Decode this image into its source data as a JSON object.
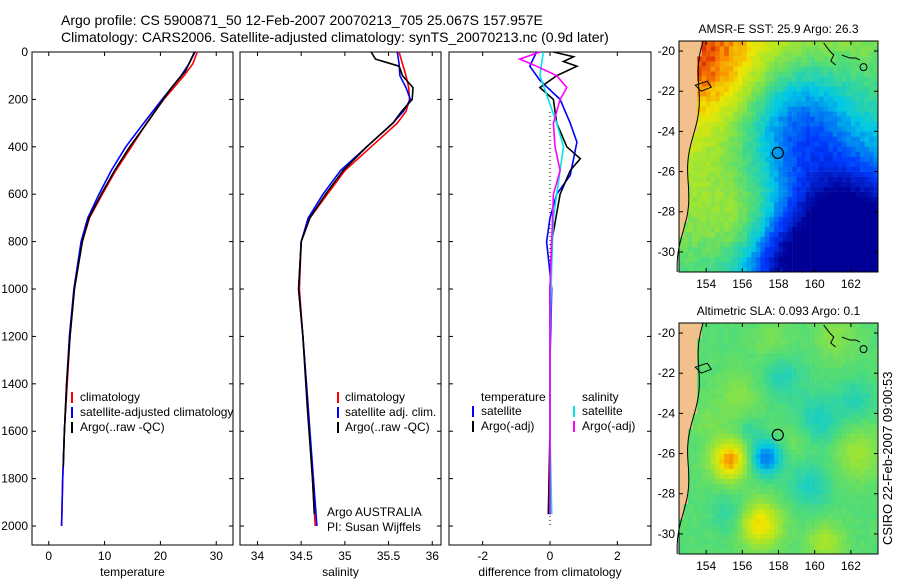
{
  "header": {
    "line1": "Argo profile: CS 5900871_50 12-Feb-2007 20070213_705 25.067S 157.957E",
    "line2": "Climatology: CARS2006. Satellite-adjusted climatology: synTS_20070213.nc (0.9d later)"
  },
  "side_label": "CSIRO 22-Feb-2007 09:00:53",
  "colors": {
    "climatology": "#ff0000",
    "satellite": "#0000ff",
    "argo": "#000000",
    "sat_diff": "#00e5e5",
    "argo_diff": "#ff00ff"
  },
  "chart_data": [
    {
      "type": "line",
      "panel": "temperature",
      "xlabel": "temperature",
      "xlim": [
        -3,
        33
      ],
      "ylim": [
        0,
        2080
      ],
      "y_reversed": true,
      "xticks": [
        0,
        10,
        20,
        30
      ],
      "yticks": [
        0,
        200,
        400,
        600,
        800,
        1000,
        1200,
        1400,
        1600,
        1800,
        2000
      ],
      "legend": [
        "climatology",
        "satellite-adjusted climatology",
        "Argo(..raw -QC)"
      ],
      "series": [
        {
          "name": "climatology",
          "color": "#ff0000",
          "depth": [
            0,
            50,
            100,
            200,
            300,
            400,
            500,
            600,
            700,
            800,
            1000,
            1200,
            1400,
            1600,
            1800,
            2000
          ],
          "values": [
            26.6,
            25.8,
            24.2,
            20.6,
            17.5,
            14.8,
            12.0,
            9.6,
            7.3,
            6.0,
            4.6,
            3.8,
            3.3,
            2.8,
            2.5,
            2.3
          ]
        },
        {
          "name": "satellite-adjusted climatology",
          "color": "#0000ff",
          "depth": [
            0,
            50,
            100,
            200,
            300,
            400,
            500,
            600,
            700,
            800,
            1000,
            1200,
            1400,
            1600,
            1800,
            2000
          ],
          "values": [
            26.2,
            25.1,
            23.7,
            20.3,
            17.0,
            13.8,
            11.2,
            9.0,
            7.0,
            5.8,
            4.5,
            3.7,
            3.2,
            2.8,
            2.5,
            2.3
          ]
        },
        {
          "name": "Argo(..raw -QC)",
          "color": "#000000",
          "depth": [
            0,
            40,
            80,
            150,
            200,
            300,
            400,
            500,
            600,
            700,
            800,
            1000,
            1200,
            1400,
            1600,
            1750
          ],
          "values": [
            26.1,
            25.3,
            24.5,
            22.0,
            20.5,
            17.6,
            14.5,
            11.8,
            9.4,
            7.2,
            6.0,
            4.6,
            3.8,
            3.2,
            2.8,
            2.6
          ]
        }
      ]
    },
    {
      "type": "line",
      "panel": "salinity",
      "xlabel": "salinity",
      "xlim": [
        33.8,
        36.1
      ],
      "ylim": [
        0,
        2080
      ],
      "y_reversed": true,
      "xticks": [
        34,
        34.5,
        35,
        35.5,
        36
      ],
      "legend": [
        "climatology",
        "satellite adj. clim.",
        "Argo(..raw -QC)"
      ],
      "annotation": [
        "Argo AUSTRALIA",
        "PI: Susan Wijffels"
      ],
      "series": [
        {
          "name": "climatology",
          "color": "#ff0000",
          "depth": [
            0,
            50,
            100,
            150,
            200,
            250,
            300,
            400,
            500,
            600,
            700,
            800,
            1000,
            1200,
            1500,
            1800,
            2000
          ],
          "values": [
            35.62,
            35.66,
            35.7,
            35.73,
            35.74,
            35.7,
            35.6,
            35.3,
            35.0,
            34.8,
            34.6,
            34.5,
            34.48,
            34.52,
            34.58,
            34.63,
            34.66
          ]
        },
        {
          "name": "satellite adj. clim.",
          "color": "#0000ff",
          "depth": [
            0,
            50,
            100,
            150,
            200,
            250,
            300,
            400,
            500,
            600,
            700,
            800,
            1000,
            1200,
            1500,
            1800,
            2000
          ],
          "values": [
            35.6,
            35.62,
            35.63,
            35.7,
            35.75,
            35.67,
            35.55,
            35.25,
            34.95,
            34.75,
            34.58,
            34.5,
            34.47,
            34.52,
            34.58,
            34.64,
            34.68
          ]
        },
        {
          "name": "Argo(..raw -QC)",
          "color": "#000000",
          "depth": [
            0,
            30,
            60,
            100,
            150,
            200,
            250,
            300,
            400,
            500,
            600,
            700,
            800,
            1000,
            1200,
            1500,
            1800,
            1950
          ],
          "values": [
            35.3,
            35.35,
            35.62,
            35.66,
            35.78,
            35.77,
            35.65,
            35.55,
            35.25,
            34.98,
            34.78,
            34.6,
            34.5,
            34.47,
            34.52,
            34.57,
            34.63,
            34.65
          ]
        }
      ]
    },
    {
      "type": "line",
      "panel": "difference",
      "xlabel": "difference from climatology",
      "xlim": [
        -3,
        3
      ],
      "ylim": [
        0,
        2080
      ],
      "y_reversed": true,
      "xticks": [
        -2,
        0,
        2
      ],
      "legend_left_title": "temperature",
      "legend_right_title": "salinity",
      "legend": [
        "satellite",
        "Argo(-adj)",
        "satellite",
        "Argo(-adj)"
      ],
      "series": [
        {
          "name": "temperature satellite",
          "color": "#0000ff",
          "depth": [
            0,
            60,
            120,
            200,
            300,
            380,
            450,
            520,
            600,
            700,
            800,
            1000,
            1300,
            1600,
            1950
          ],
          "values": [
            -0.4,
            -0.6,
            -0.3,
            0.3,
            0.6,
            0.8,
            0.7,
            0.6,
            0.2,
            0.0,
            -0.1,
            0.05,
            0.0,
            0.0,
            0.0
          ]
        },
        {
          "name": "temperature Argo(-adj)",
          "color": "#000000",
          "depth": [
            0,
            20,
            40,
            60,
            100,
            150,
            200,
            300,
            400,
            450,
            500,
            600,
            800,
            1000,
            1300,
            1600,
            1950
          ],
          "values": [
            0.1,
            0.7,
            0.4,
            0.8,
            0.2,
            -0.3,
            0.1,
            0.2,
            0.5,
            0.9,
            0.6,
            0.3,
            0.05,
            0.0,
            0.0,
            0.0,
            -0.05
          ]
        },
        {
          "name": "salinity satellite",
          "color": "#00e5e5",
          "depth": [
            0,
            100,
            200,
            300,
            400,
            500,
            600,
            700,
            900,
            1200,
            1600,
            1950
          ],
          "values": [
            -0.2,
            -0.3,
            -0.05,
            0.2,
            0.4,
            0.3,
            0.2,
            0.1,
            0.05,
            0.0,
            0.0,
            0.05
          ]
        },
        {
          "name": "salinity Argo(-adj)",
          "color": "#ff00ff",
          "depth": [
            0,
            30,
            60,
            100,
            150,
            200,
            300,
            400,
            500,
            600,
            800,
            1000,
            1300,
            1600,
            1950
          ],
          "values": [
            -0.3,
            -0.9,
            -0.4,
            0.2,
            0.5,
            0.3,
            0.1,
            0.15,
            0.3,
            0.1,
            0.05,
            0.0,
            0.0,
            0.0,
            0.0
          ]
        }
      ]
    },
    {
      "type": "heatmap",
      "panel": "sst_map",
      "title": "AMSR-E SST: 25.9 Argo: 26.3",
      "xticks": [
        154,
        156,
        158,
        160,
        162
      ],
      "yticks": [
        -20,
        -22,
        -24,
        -26,
        -28,
        -30
      ],
      "xlim": [
        152.5,
        163.5
      ],
      "ylim": [
        -31,
        -19.5
      ],
      "argo_position": [
        157.96,
        -25.07
      ]
    },
    {
      "type": "heatmap",
      "panel": "sla_map",
      "title": "Altimetric SLA: 0.093 Argo: 0.1",
      "xticks": [
        154,
        156,
        158,
        160,
        162
      ],
      "yticks": [
        -20,
        -22,
        -24,
        -26,
        -28,
        -30
      ],
      "xlim": [
        152.5,
        163.5
      ],
      "ylim": [
        -31,
        -19.5
      ],
      "argo_position": [
        157.96,
        -25.07
      ]
    }
  ]
}
